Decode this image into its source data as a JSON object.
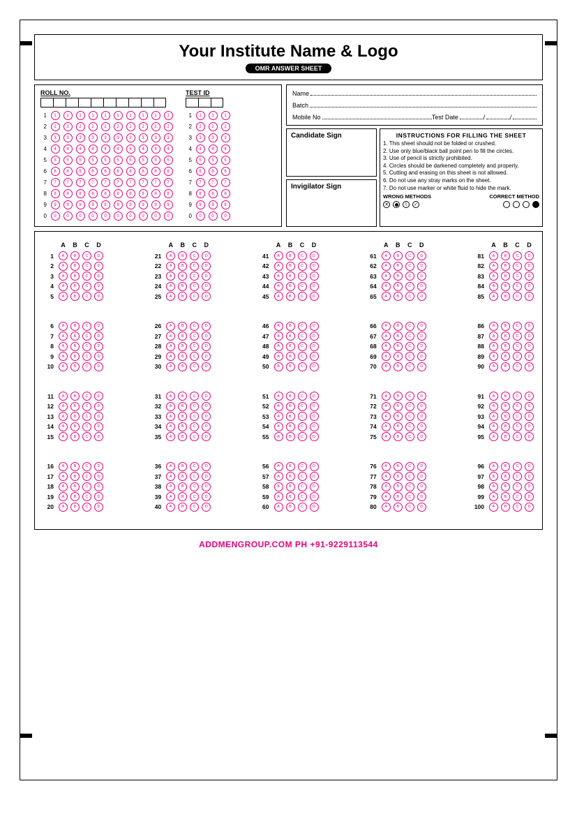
{
  "header": {
    "title": "Your Institute Name & Logo",
    "subtitle": "OMR ANSWER SHEET"
  },
  "roll": {
    "label": "ROLL NO.",
    "columns": 10,
    "digits": [
      "1",
      "2",
      "3",
      "4",
      "5",
      "6",
      "7",
      "8",
      "9",
      "0"
    ]
  },
  "test": {
    "label": "TEST ID",
    "columns": 3,
    "digits": [
      "1",
      "2",
      "3",
      "4",
      "5",
      "6",
      "7",
      "8",
      "9",
      "0"
    ]
  },
  "info": {
    "name_label": "Name",
    "batch_label": "Batch",
    "mobile_label": "Mobile No",
    "testdate_label": "Test Date",
    "date_sep": "/"
  },
  "sign": {
    "candidate": "Candidate Sign",
    "invigilator": "Invigilator Sign"
  },
  "instructions": {
    "title": "INSTRUCTIONS FOR FILLING THE SHEET",
    "items": [
      "1. This sheet should not be folded or crushed.",
      "2. Use only blue/black ball point pen to fill the circles.",
      "3. Use of pencil is strictly prohibited.",
      "4. Circles should be darkened completely and properly.",
      "5. Cutting and erasing on this sheet is not allowed.",
      "6. Do not use any stray marks on the sheet.",
      "7. Do not use marker or white fluid to hide the mark."
    ],
    "wrong_label": "WRONG METHODS",
    "correct_label": "CORRECT METHOD"
  },
  "answers": {
    "options": [
      "A",
      "B",
      "C",
      "D"
    ],
    "total": 100,
    "columns": 5,
    "groups_per_column": 4,
    "rows_per_group": 5,
    "bubble_color": "#e6007e"
  },
  "footer": {
    "text": "ADDMENGROUP.COM   PH +91-9229113544"
  }
}
